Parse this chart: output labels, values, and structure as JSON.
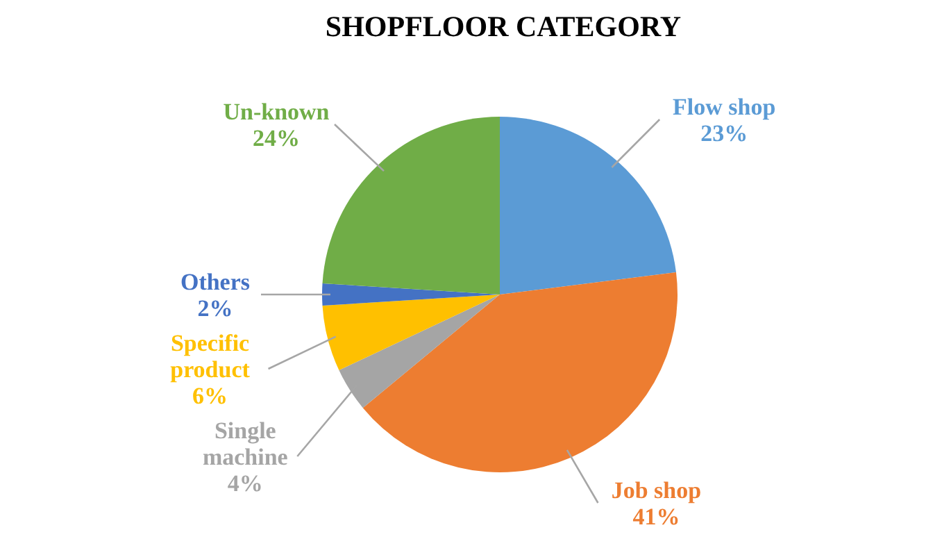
{
  "chart_data": {
    "type": "pie",
    "title": "SHOPFLOOR CATEGORY",
    "categories": [
      "Flow shop",
      "Job shop",
      "Single machine",
      "Specific product",
      "Others",
      "Un-known"
    ],
    "values": [
      23,
      41,
      4,
      6,
      2,
      24
    ],
    "colors": [
      "#5b9bd5",
      "#ed7d31",
      "#a5a5a5",
      "#ffc000",
      "#4472c4",
      "#70ad47"
    ],
    "value_labels": [
      "23%",
      "41%",
      "4%",
      "6%",
      "2%",
      "24%"
    ]
  }
}
